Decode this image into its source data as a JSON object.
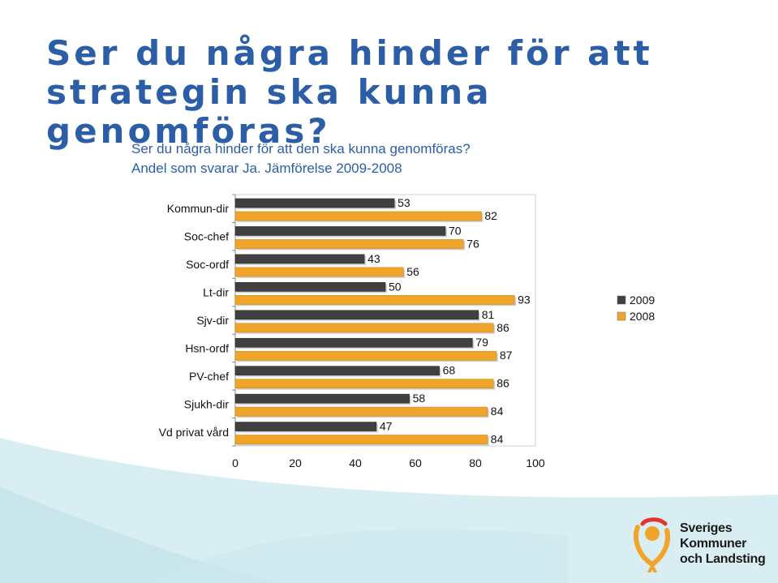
{
  "slide": {
    "title_line1": "Ser du några hinder för att",
    "title_line2": "strategin ska kunna genomföras?"
  },
  "chart_data": {
    "type": "bar",
    "orientation": "horizontal",
    "title_line1": "Ser du några hinder för att den ska kunna genomföras?",
    "title_line2": "Andel som svarar Ja. Jämförelse 2009-2008",
    "categories": [
      "Kommun-dir",
      "Soc-chef",
      "Soc-ordf",
      "Lt-dir",
      "Sjv-dir",
      "Hsn-ordf",
      "PV-chef",
      "Sjukh-dir",
      "Vd privat vård"
    ],
    "series": [
      {
        "name": "2009",
        "color": "#404040",
        "values": [
          53,
          70,
          43,
          50,
          81,
          79,
          68,
          58,
          47
        ]
      },
      {
        "name": "2008",
        "color": "#f0a52a",
        "values": [
          82,
          76,
          56,
          93,
          86,
          87,
          86,
          84,
          84
        ]
      }
    ],
    "xlim": [
      0,
      100
    ],
    "xticks": [
      0,
      20,
      40,
      60,
      80,
      100
    ],
    "legend_position": "right",
    "grid": false
  },
  "logo": {
    "line1": "Sveriges",
    "line2": "Kommuner",
    "line3": "och Landsting"
  },
  "colors": {
    "title": "#2c5ea8",
    "background_band": "#d8eef3"
  }
}
